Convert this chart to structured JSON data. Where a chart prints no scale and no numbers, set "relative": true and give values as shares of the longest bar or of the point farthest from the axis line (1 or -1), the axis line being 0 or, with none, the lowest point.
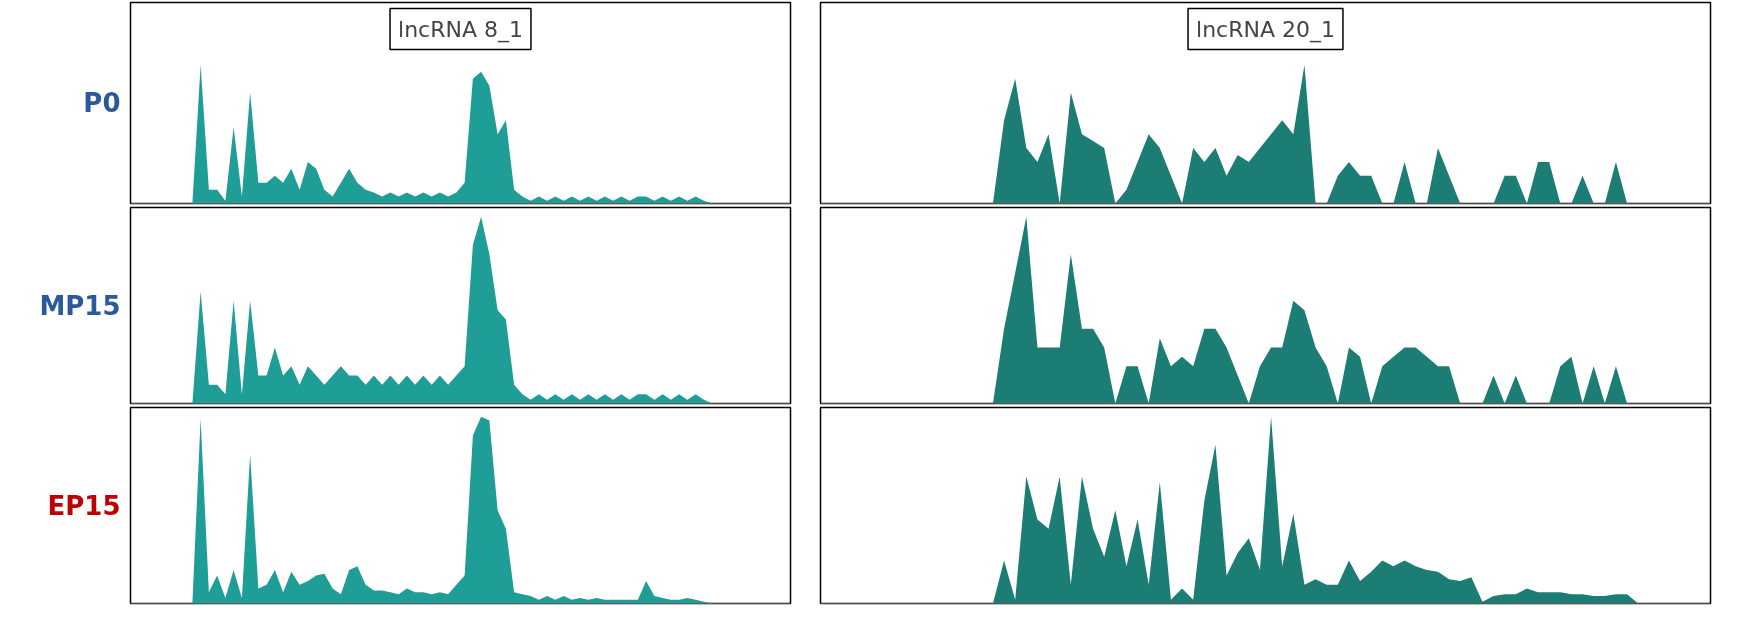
{
  "chart_data": [
    {
      "type": "area",
      "relative": true,
      "title": "lncRNA 8_1",
      "ylabel": "P0",
      "categories": [
        null,
        null,
        null,
        null,
        null,
        null,
        null,
        null,
        null,
        null,
        null,
        null,
        null,
        null,
        null,
        null,
        null,
        null,
        null,
        null,
        null,
        null,
        null,
        null,
        null,
        null,
        null,
        null,
        null,
        null,
        null,
        null,
        null,
        null,
        null,
        null,
        null,
        null,
        null,
        null,
        null,
        null,
        null,
        null,
        null,
        null,
        null,
        null,
        null,
        null,
        null,
        null,
        null,
        null,
        null,
        null,
        null,
        null,
        null,
        null,
        null,
        null,
        null,
        null,
        null,
        null,
        null,
        null,
        null,
        null,
        null,
        null,
        null,
        null,
        null,
        null,
        null,
        null,
        null,
        null
      ],
      "series": [
        {
          "color": "#1f9e97",
          "values": [
            0,
            0,
            0,
            0,
            0,
            0,
            0,
            0,
            1.0,
            0.1,
            0.1,
            0.02,
            0.55,
            0.05,
            0.8,
            0.15,
            0.15,
            0.2,
            0.15,
            0.25,
            0.1,
            0.3,
            0.25,
            0.1,
            0.05,
            0.15,
            0.25,
            0.15,
            0.1,
            0.08,
            0.05,
            0.08,
            0.05,
            0.08,
            0.05,
            0.08,
            0.05,
            0.08,
            0.05,
            0.08,
            0.15,
            0.9,
            0.95,
            0.85,
            0.5,
            0.6,
            0.1,
            0.05,
            0.02,
            0.05,
            0.02,
            0.05,
            0.02,
            0.05,
            0.02,
            0.05,
            0.02,
            0.05,
            0.02,
            0.05,
            0.02,
            0.05,
            0.05,
            0.02,
            0.05,
            0.02,
            0.05,
            0.02,
            0.05,
            0.02,
            0,
            0,
            0,
            0,
            0,
            0,
            0,
            0,
            0,
            0
          ]
        }
      ]
    },
    {
      "type": "area",
      "relative": true,
      "title": "lncRNA 20_1",
      "categories": [
        null,
        null,
        null,
        null,
        null,
        null,
        null,
        null,
        null,
        null,
        null,
        null,
        null,
        null,
        null,
        null,
        null,
        null,
        null,
        null,
        null,
        null,
        null,
        null,
        null,
        null,
        null,
        null,
        null,
        null,
        null,
        null,
        null,
        null,
        null,
        null,
        null,
        null,
        null,
        null,
        null,
        null,
        null,
        null,
        null,
        null,
        null,
        null,
        null,
        null,
        null,
        null,
        null,
        null,
        null,
        null,
        null,
        null,
        null,
        null,
        null,
        null,
        null,
        null,
        null,
        null,
        null,
        null,
        null,
        null,
        null,
        null,
        null,
        null,
        null,
        null,
        null,
        null,
        null,
        null
      ],
      "series": [
        {
          "color": "#1b7d73",
          "values": [
            0,
            0,
            0,
            0,
            0,
            0,
            0,
            0,
            0,
            0,
            0,
            0,
            0,
            0,
            0,
            0,
            0.6,
            0.9,
            0.4,
            0.3,
            0.5,
            0,
            0.8,
            0.5,
            0.45,
            0.4,
            0,
            0.1,
            0.3,
            0.5,
            0.4,
            0.2,
            0,
            0.4,
            0.3,
            0.4,
            0.2,
            0.35,
            0.3,
            0.4,
            0.5,
            0.6,
            0.5,
            1.0,
            0,
            0,
            0.2,
            0.3,
            0.2,
            0.2,
            0,
            0,
            0.3,
            0,
            0,
            0.4,
            0.2,
            0,
            0,
            0,
            0,
            0.2,
            0.2,
            0,
            0.3,
            0.3,
            0,
            0,
            0.2,
            0,
            0,
            0.3,
            0,
            0,
            0,
            0,
            0,
            0,
            0,
            0
          ]
        }
      ]
    },
    {
      "type": "area",
      "relative": true,
      "ylabel": "MP15",
      "categories": [
        null,
        null,
        null,
        null,
        null,
        null,
        null,
        null,
        null,
        null,
        null,
        null,
        null,
        null,
        null,
        null,
        null,
        null,
        null,
        null,
        null,
        null,
        null,
        null,
        null,
        null,
        null,
        null,
        null,
        null,
        null,
        null,
        null,
        null,
        null,
        null,
        null,
        null,
        null,
        null,
        null,
        null,
        null,
        null,
        null,
        null,
        null,
        null,
        null,
        null,
        null,
        null,
        null,
        null,
        null,
        null,
        null,
        null,
        null,
        null,
        null,
        null,
        null,
        null,
        null,
        null,
        null,
        null,
        null,
        null,
        null,
        null,
        null,
        null,
        null,
        null,
        null,
        null,
        null,
        null
      ],
      "series": [
        {
          "color": "#1f9e97",
          "values": [
            0,
            0,
            0,
            0,
            0,
            0,
            0,
            0,
            0.6,
            0.1,
            0.1,
            0.05,
            0.55,
            0.05,
            0.55,
            0.15,
            0.15,
            0.3,
            0.15,
            0.2,
            0.1,
            0.2,
            0.15,
            0.1,
            0.15,
            0.2,
            0.15,
            0.15,
            0.1,
            0.15,
            0.1,
            0.15,
            0.1,
            0.15,
            0.1,
            0.15,
            0.1,
            0.15,
            0.1,
            0.15,
            0.2,
            0.85,
            1.0,
            0.8,
            0.5,
            0.45,
            0.1,
            0.05,
            0.02,
            0.05,
            0.02,
            0.05,
            0.02,
            0.05,
            0.02,
            0.05,
            0.02,
            0.05,
            0.02,
            0.05,
            0.02,
            0.05,
            0.05,
            0.02,
            0.05,
            0.02,
            0.05,
            0.02,
            0.05,
            0.02,
            0,
            0,
            0,
            0,
            0,
            0,
            0,
            0,
            0,
            0
          ]
        }
      ]
    },
    {
      "type": "area",
      "relative": true,
      "categories": [
        null,
        null,
        null,
        null,
        null,
        null,
        null,
        null,
        null,
        null,
        null,
        null,
        null,
        null,
        null,
        null,
        null,
        null,
        null,
        null,
        null,
        null,
        null,
        null,
        null,
        null,
        null,
        null,
        null,
        null,
        null,
        null,
        null,
        null,
        null,
        null,
        null,
        null,
        null,
        null,
        null,
        null,
        null,
        null,
        null,
        null,
        null,
        null,
        null,
        null,
        null,
        null,
        null,
        null,
        null,
        null,
        null,
        null,
        null,
        null,
        null,
        null,
        null,
        null,
        null,
        null,
        null,
        null,
        null,
        null,
        null,
        null,
        null,
        null,
        null,
        null,
        null,
        null,
        null,
        null
      ],
      "series": [
        {
          "color": "#1b7d73",
          "values": [
            0,
            0,
            0,
            0,
            0,
            0,
            0,
            0,
            0,
            0,
            0,
            0,
            0,
            0,
            0,
            0,
            0.4,
            0.7,
            1.0,
            0.3,
            0.3,
            0.3,
            0.8,
            0.4,
            0.4,
            0.3,
            0,
            0.2,
            0.2,
            0,
            0.35,
            0.2,
            0.25,
            0.2,
            0.4,
            0.4,
            0.3,
            0.15,
            0,
            0.2,
            0.3,
            0.3,
            0.55,
            0.5,
            0.3,
            0.2,
            0,
            0.3,
            0.25,
            0,
            0.2,
            0.25,
            0.3,
            0.3,
            0.25,
            0.2,
            0.2,
            0,
            0,
            0,
            0.15,
            0,
            0.15,
            0,
            0,
            0,
            0.2,
            0.25,
            0,
            0.2,
            0,
            0.2,
            0,
            0,
            0,
            0,
            0,
            0,
            0,
            0
          ]
        }
      ]
    },
    {
      "type": "area",
      "relative": true,
      "ylabel": "EP15",
      "categories": [
        null,
        null,
        null,
        null,
        null,
        null,
        null,
        null,
        null,
        null,
        null,
        null,
        null,
        null,
        null,
        null,
        null,
        null,
        null,
        null,
        null,
        null,
        null,
        null,
        null,
        null,
        null,
        null,
        null,
        null,
        null,
        null,
        null,
        null,
        null,
        null,
        null,
        null,
        null,
        null,
        null,
        null,
        null,
        null,
        null,
        null,
        null,
        null,
        null,
        null,
        null,
        null,
        null,
        null,
        null,
        null,
        null,
        null,
        null,
        null,
        null,
        null,
        null,
        null,
        null,
        null,
        null,
        null,
        null,
        null,
        null,
        null,
        null,
        null,
        null,
        null,
        null,
        null,
        null,
        null
      ],
      "series": [
        {
          "color": "#1f9e97",
          "values": [
            0,
            0,
            0,
            0,
            0,
            0,
            0,
            0,
            0.99,
            0.06,
            0.15,
            0.03,
            0.18,
            0.03,
            0.8,
            0.08,
            0.1,
            0.18,
            0.06,
            0.17,
            0.1,
            0.12,
            0.15,
            0.16,
            0.08,
            0.05,
            0.18,
            0.2,
            0.1,
            0.07,
            0.07,
            0.06,
            0.05,
            0.08,
            0.06,
            0.06,
            0.05,
            0.06,
            0.05,
            0.1,
            0.15,
            0.9,
            1.0,
            0.98,
            0.5,
            0.4,
            0.06,
            0.05,
            0.04,
            0.02,
            0.04,
            0.02,
            0.04,
            0.02,
            0.03,
            0.02,
            0.03,
            0.02,
            0.02,
            0.02,
            0.02,
            0.02,
            0.12,
            0.04,
            0.03,
            0.02,
            0.02,
            0.03,
            0.02,
            0.01,
            0,
            0,
            0,
            0,
            0,
            0,
            0,
            0,
            0,
            0
          ]
        }
      ]
    },
    {
      "type": "area",
      "relative": true,
      "categories": [
        null,
        null,
        null,
        null,
        null,
        null,
        null,
        null,
        null,
        null,
        null,
        null,
        null,
        null,
        null,
        null,
        null,
        null,
        null,
        null,
        null,
        null,
        null,
        null,
        null,
        null,
        null,
        null,
        null,
        null,
        null,
        null,
        null,
        null,
        null,
        null,
        null,
        null,
        null,
        null,
        null,
        null,
        null,
        null,
        null,
        null,
        null,
        null,
        null,
        null,
        null,
        null,
        null,
        null,
        null,
        null,
        null,
        null,
        null,
        null,
        null,
        null,
        null,
        null,
        null,
        null,
        null,
        null,
        null,
        null,
        null,
        null,
        null,
        null,
        null,
        null,
        null,
        null,
        null,
        null
      ],
      "series": [
        {
          "color": "#1b7d73",
          "values": [
            0,
            0,
            0,
            0,
            0,
            0,
            0,
            0,
            0,
            0,
            0,
            0,
            0,
            0,
            0,
            0,
            0.23,
            0.02,
            0.68,
            0.45,
            0.4,
            0.68,
            0.1,
            0.68,
            0.4,
            0.25,
            0.5,
            0.2,
            0.45,
            0.1,
            0.65,
            0.02,
            0.08,
            0.02,
            0.55,
            0.85,
            0.15,
            0.27,
            0.35,
            0.18,
            1.0,
            0.2,
            0.48,
            0.1,
            0.13,
            0.1,
            0.1,
            0.23,
            0.12,
            0.17,
            0.23,
            0.2,
            0.23,
            0.2,
            0.18,
            0.17,
            0.13,
            0.12,
            0.14,
            0.01,
            0.04,
            0.05,
            0.05,
            0.08,
            0.06,
            0.06,
            0.06,
            0.05,
            0.05,
            0.04,
            0.04,
            0.05,
            0.05,
            0,
            0,
            0,
            0,
            0,
            0,
            0
          ]
        }
      ]
    }
  ]
}
